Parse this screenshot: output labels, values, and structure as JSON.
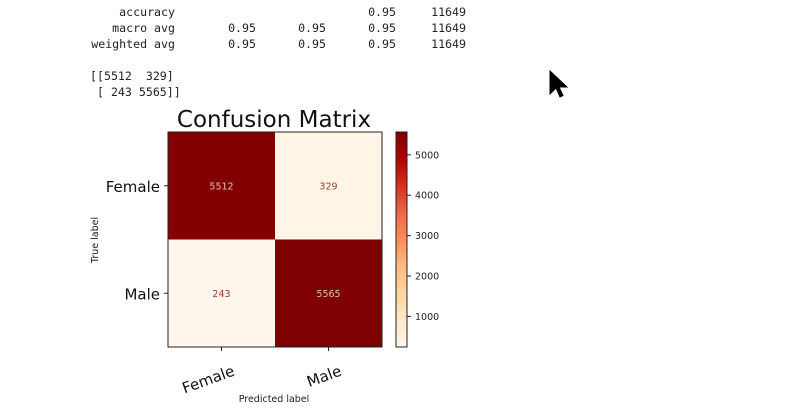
{
  "report": {
    "rows": [
      {
        "label": "accuracy",
        "precision": "",
        "recall": "",
        "f1": "0.95",
        "support": "11649"
      },
      {
        "label": "macro avg",
        "precision": "0.95",
        "recall": "0.95",
        "f1": "0.95",
        "support": "11649"
      },
      {
        "label": "weighted avg",
        "precision": "0.95",
        "recall": "0.95",
        "f1": "0.95",
        "support": "11649"
      }
    ]
  },
  "matrix_print": {
    "lines": [
      "[[5512  329]",
      " [ 243 5565]]"
    ]
  },
  "cursor": {
    "icon": "cursor-arrow-icon",
    "color": "#000000"
  },
  "chart_data": {
    "type": "heatmap",
    "title": "Confusion Matrix",
    "xlabel": "Predicted label",
    "ylabel": "True label",
    "x_categories": [
      "Female",
      "Male"
    ],
    "y_categories": [
      "Female",
      "Male"
    ],
    "values": [
      [
        5512,
        329
      ],
      [
        243,
        5565
      ]
    ],
    "colormap": "OrRd",
    "color_low": "#fff7ec",
    "color_high": "#7f0000",
    "colorbar": {
      "range": [
        243,
        5565
      ],
      "ticks": [
        1000,
        2000,
        3000,
        4000,
        5000
      ],
      "tick_labels": [
        "1000",
        "2000",
        "3000",
        "4000",
        "5000"
      ]
    },
    "cell_text_color": "#d6c3b5",
    "cell_text_color_dark": "#a63a2a"
  }
}
